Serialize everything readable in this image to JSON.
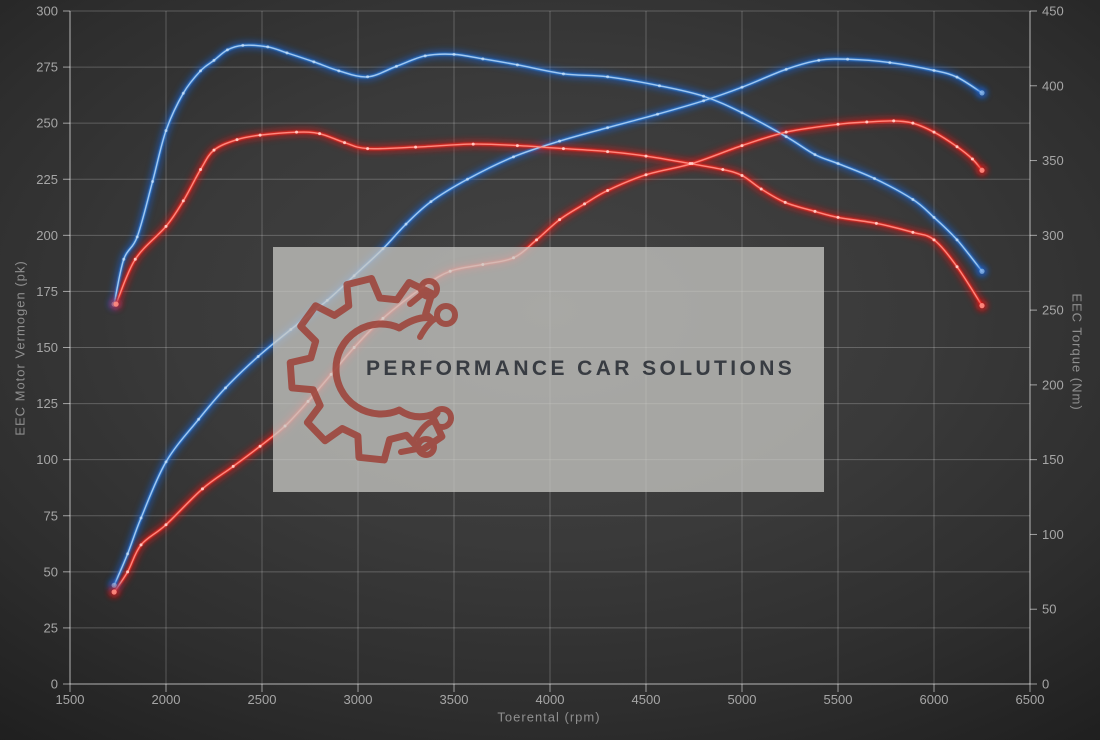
{
  "watermark": {
    "text": "PERFORMANCE CAR SOLUTIONS"
  },
  "colors": {
    "background_center": "#434343",
    "background_edge": "#1f1f1f",
    "grid": "rgba(255,255,255,0.22)",
    "axis": "rgba(255,255,255,0.55)",
    "tick_label": "#a6a6a6",
    "axis_title": "#8f8f8f",
    "watermark_box": "rgba(201,201,197,0.75)",
    "logo_red": "#9d4137",
    "watermark_text": "#383c42",
    "blue": {
      "glow": "#1760d2",
      "core": "#2f7cd6",
      "bright": "#a8cdf2",
      "marker": "#d6e9fc"
    },
    "red": {
      "glow": "#e01313",
      "core": "#ee2a20",
      "bright": "#ff8d82",
      "marker": "#ffd2cb"
    }
  },
  "chart_data": {
    "type": "line",
    "title": "",
    "grid": true,
    "legend": "none",
    "x": {
      "title": "Toerental (rpm)",
      "min": 1500,
      "max": 6500,
      "tick_step": 500
    },
    "y_left": {
      "title": "EEC Motor Vermogen (pk)",
      "min": 0,
      "max": 300,
      "tick_step": 25
    },
    "y_right": {
      "title": "EEC Torque (Nm)",
      "min": 0,
      "max": 450,
      "tick_step": 50
    },
    "series": [
      {
        "name": "vermogen-blue",
        "unit": "pk",
        "axis": "left",
        "color": "blue",
        "points": [
          [
            1730,
            44
          ],
          [
            1800,
            58
          ],
          [
            1870,
            74
          ],
          [
            2000,
            99
          ],
          [
            2170,
            118
          ],
          [
            2310,
            132
          ],
          [
            2480,
            146
          ],
          [
            2650,
            158
          ],
          [
            2840,
            171
          ],
          [
            2980,
            182
          ],
          [
            3130,
            194
          ],
          [
            3250,
            205
          ],
          [
            3380,
            215
          ],
          [
            3570,
            225
          ],
          [
            3810,
            235
          ],
          [
            4050,
            242
          ],
          [
            4300,
            248
          ],
          [
            4560,
            254
          ],
          [
            4800,
            260
          ],
          [
            5000,
            266
          ],
          [
            5230,
            274
          ],
          [
            5400,
            278
          ],
          [
            5550,
            278.5
          ],
          [
            5770,
            277
          ],
          [
            6000,
            273.5
          ],
          [
            6120,
            270.5
          ],
          [
            6250,
            263.5
          ]
        ]
      },
      {
        "name": "torque-blue",
        "unit": "Nm",
        "axis": "right",
        "color": "blue",
        "points": [
          [
            1730,
            254
          ],
          [
            1780,
            284
          ],
          [
            1850,
            299
          ],
          [
            1930,
            336
          ],
          [
            2000,
            370
          ],
          [
            2090,
            395
          ],
          [
            2180,
            410
          ],
          [
            2250,
            417
          ],
          [
            2320,
            424
          ],
          [
            2400,
            427
          ],
          [
            2530,
            426
          ],
          [
            2630,
            422
          ],
          [
            2770,
            416
          ],
          [
            2900,
            410
          ],
          [
            3050,
            406
          ],
          [
            3200,
            413
          ],
          [
            3350,
            420
          ],
          [
            3500,
            421
          ],
          [
            3650,
            418
          ],
          [
            3830,
            414
          ],
          [
            4070,
            408
          ],
          [
            4300,
            406
          ],
          [
            4570,
            400
          ],
          [
            4800,
            393
          ],
          [
            5000,
            382
          ],
          [
            5230,
            366
          ],
          [
            5380,
            354
          ],
          [
            5500,
            348
          ],
          [
            5690,
            338
          ],
          [
            5890,
            324
          ],
          [
            6000,
            312
          ],
          [
            6120,
            297
          ],
          [
            6250,
            276
          ]
        ]
      },
      {
        "name": "vermogen-red",
        "unit": "pk",
        "axis": "left",
        "color": "red",
        "points": [
          [
            1730,
            41
          ],
          [
            1800,
            50
          ],
          [
            1870,
            62
          ],
          [
            2000,
            71
          ],
          [
            2190,
            87
          ],
          [
            2350,
            97
          ],
          [
            2490,
            106
          ],
          [
            2620,
            115
          ],
          [
            2740,
            126
          ],
          [
            2860,
            138
          ],
          [
            2980,
            150
          ],
          [
            3130,
            163
          ],
          [
            3340,
            177
          ],
          [
            3480,
            184
          ],
          [
            3650,
            187
          ],
          [
            3810,
            190
          ],
          [
            3930,
            198
          ],
          [
            4050,
            207
          ],
          [
            4180,
            214
          ],
          [
            4300,
            220
          ],
          [
            4500,
            227
          ],
          [
            4740,
            232
          ],
          [
            5000,
            240
          ],
          [
            5230,
            246
          ],
          [
            5500,
            249.5
          ],
          [
            5650,
            250.5
          ],
          [
            5790,
            251
          ],
          [
            5890,
            250
          ],
          [
            6000,
            246
          ],
          [
            6120,
            239.5
          ],
          [
            6200,
            234
          ],
          [
            6250,
            229
          ]
        ]
      },
      {
        "name": "torque-red",
        "unit": "Nm",
        "axis": "right",
        "color": "red",
        "points": [
          [
            1740,
            254
          ],
          [
            1840,
            284
          ],
          [
            2000,
            306
          ],
          [
            2090,
            323
          ],
          [
            2180,
            344
          ],
          [
            2250,
            357
          ],
          [
            2370,
            364
          ],
          [
            2490,
            367
          ],
          [
            2680,
            369
          ],
          [
            2800,
            368
          ],
          [
            2930,
            362
          ],
          [
            3050,
            358
          ],
          [
            3300,
            359
          ],
          [
            3600,
            361
          ],
          [
            3830,
            360
          ],
          [
            4070,
            358
          ],
          [
            4300,
            356
          ],
          [
            4500,
            353
          ],
          [
            4730,
            348
          ],
          [
            4900,
            344
          ],
          [
            5000,
            340
          ],
          [
            5100,
            331
          ],
          [
            5225,
            322
          ],
          [
            5380,
            316
          ],
          [
            5500,
            312
          ],
          [
            5700,
            308
          ],
          [
            5890,
            302
          ],
          [
            6000,
            297
          ],
          [
            6120,
            279
          ],
          [
            6250,
            253
          ]
        ]
      }
    ]
  }
}
